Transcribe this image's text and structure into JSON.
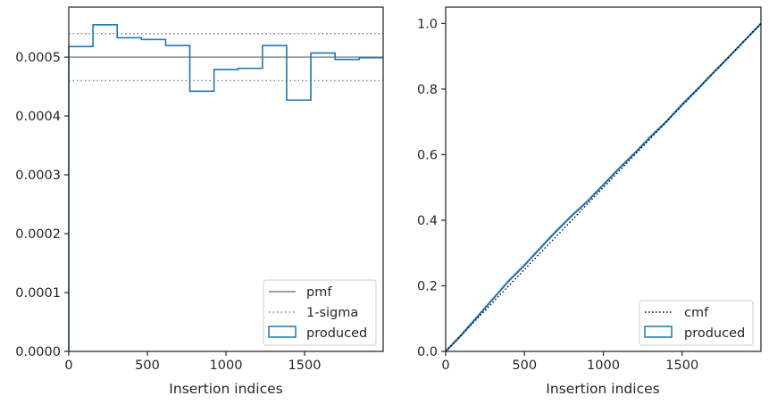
{
  "chart_data": [
    {
      "type": "line",
      "xlabel": "Insertion indices",
      "ylabel": "",
      "xlim": [
        0,
        2000
      ],
      "ylim": [
        0,
        0.000585
      ],
      "xticks": [
        0,
        500,
        1000,
        1500
      ],
      "xtick_labels": [
        "0",
        "500",
        "1000",
        "1500"
      ],
      "yticks": [
        0,
        0.0001,
        0.0002,
        0.0003,
        0.0004,
        0.0005
      ],
      "ytick_labels": [
        "0.0000",
        "0.0001",
        "0.0002",
        "0.0003",
        "0.0004",
        "0.0005"
      ],
      "grid": false,
      "legend_position": "lower-right",
      "series": [
        {
          "name": "pmf",
          "kind": "hline",
          "y": 0.0005,
          "color": "#808080",
          "style": "solid"
        },
        {
          "name": "1-sigma",
          "kind": "hlines",
          "y": [
            0.00054,
            0.00046
          ],
          "color": "#808080",
          "style": "dotted"
        },
        {
          "name": "produced",
          "kind": "step",
          "color": "#1f77b4",
          "bin_edges": [
            0,
            154,
            308,
            462,
            616,
            770,
            924,
            1078,
            1232,
            1386,
            1540,
            1694,
            1848,
            2000
          ],
          "values": [
            0.000518,
            0.000555,
            0.000533,
            0.00053,
            0.00052,
            0.000442,
            0.000479,
            0.000481,
            0.00052,
            0.000427,
            0.000507,
            0.000496,
            0.000499
          ]
        }
      ]
    },
    {
      "type": "line",
      "xlabel": "Insertion indices",
      "ylabel": "",
      "xlim": [
        0,
        2000
      ],
      "ylim": [
        0,
        1.05
      ],
      "xticks": [
        0,
        500,
        1000,
        1500
      ],
      "xtick_labels": [
        "0",
        "500",
        "1000",
        "1500"
      ],
      "yticks": [
        0,
        0.2,
        0.4,
        0.6,
        0.8,
        1.0
      ],
      "ytick_labels": [
        "0.0",
        "0.2",
        "0.4",
        "0.6",
        "0.8",
        "1.0"
      ],
      "grid": false,
      "legend_position": "lower-right",
      "series": [
        {
          "name": "cmf",
          "kind": "line",
          "color": "#000000",
          "style": "dotted",
          "x": [
            0,
            2000
          ],
          "y": [
            0,
            1.0
          ]
        },
        {
          "name": "produced",
          "kind": "line",
          "color": "#1f77b4",
          "style": "solid",
          "x": [
            0,
            100,
            200,
            300,
            400,
            500,
            600,
            700,
            800,
            900,
            1000,
            1100,
            1200,
            1300,
            1400,
            1500,
            1600,
            1700,
            1800,
            1900,
            2000
          ],
          "y": [
            0,
            0.05,
            0.105,
            0.16,
            0.215,
            0.263,
            0.315,
            0.366,
            0.414,
            0.458,
            0.508,
            0.558,
            0.605,
            0.655,
            0.701,
            0.753,
            0.801,
            0.851,
            0.9,
            0.95,
            1.0
          ]
        }
      ]
    }
  ]
}
